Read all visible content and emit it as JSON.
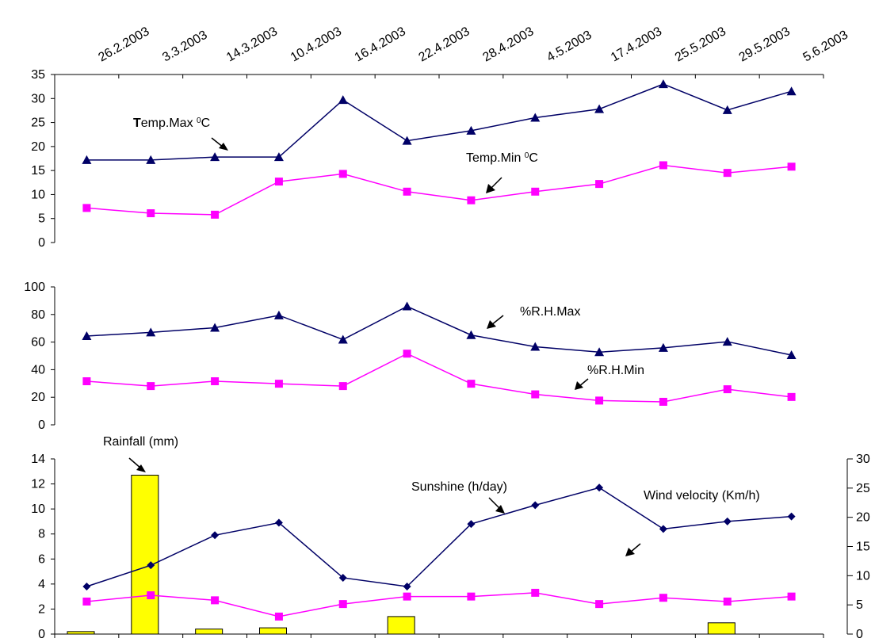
{
  "colors": {
    "navy": "#000066",
    "magenta": "#ff00ff",
    "rain_fill": "#ffff00",
    "rain_stroke": "#000000",
    "axis": "#000000"
  },
  "chart_data": [
    {
      "type": "line",
      "categories": [
        "26.2.2003",
        "3.3.2003",
        "14.3.2003",
        "10.4.2003",
        "16.4.2003",
        "22.4.2003",
        "28.4.2003",
        "4.5.2003",
        "17.4.2003",
        "25.5.2003",
        "29.5.2003",
        "5.6.2003"
      ],
      "ylim": [
        0,
        35
      ],
      "yticks": [
        "0",
        "5",
        "10",
        "15",
        "20",
        "25",
        "30",
        "35"
      ],
      "series": [
        {
          "name": "Temp.Max ⁰C",
          "marker": "triangle",
          "color": "#000066",
          "values": [
            17.2,
            17.2,
            17.8,
            17.8,
            29.7,
            21.2,
            23.3,
            26.0,
            27.8,
            33.0,
            27.6,
            31.5
          ]
        },
        {
          "name": "Temp.Min ⁰C",
          "marker": "square",
          "color": "#ff00ff",
          "values": [
            7.2,
            6.1,
            5.8,
            12.7,
            14.3,
            10.6,
            8.8,
            10.6,
            12.2,
            16.1,
            14.5,
            15.8
          ]
        }
      ],
      "annotations": {
        "max_bold": "T",
        "max_rest": "emp.Max ",
        "max_sup": "0",
        "max_unit": "C",
        "min_main": "Temp.Min ",
        "min_sup": "0",
        "min_unit": "C"
      }
    },
    {
      "type": "line",
      "categories": [
        "26.2.2003",
        "3.3.2003",
        "14.3.2003",
        "10.4.2003",
        "16.4.2003",
        "22.4.2003",
        "28.4.2003",
        "4.5.2003",
        "17.4.2003",
        "25.5.2003",
        "29.5.2003",
        "5.6.2003"
      ],
      "ylim": [
        0,
        100
      ],
      "yticks": [
        "0",
        "20",
        "40",
        "60",
        "80",
        "100"
      ],
      "series": [
        {
          "name": "%R.H.Max",
          "marker": "triangle",
          "color": "#000066",
          "values": [
            64.4,
            67.0,
            70.4,
            79.4,
            61.8,
            85.9,
            65.1,
            56.6,
            52.7,
            55.8,
            60.3,
            50.6
          ]
        },
        {
          "name": "%R.H.Min",
          "marker": "square",
          "color": "#ff00ff",
          "values": [
            31.6,
            28.1,
            31.6,
            29.8,
            28.1,
            51.6,
            29.8,
            22.1,
            17.6,
            16.7,
            25.8,
            20.2
          ]
        }
      ]
    },
    {
      "type": "bar+line",
      "categories": [
        "26.2.2003",
        "3.3.2003",
        "14.3.2003",
        "10.4.2003",
        "16.4.2003",
        "22.4.2003",
        "28.4.2003",
        "4.5.2003",
        "17.4.2003",
        "25.5.2003",
        "29.5.2003",
        "5.6.2003"
      ],
      "ylim_left": [
        0,
        14
      ],
      "yticks_left": [
        "0",
        "2",
        "4",
        "6",
        "8",
        "10",
        "12",
        "14"
      ],
      "ylim_right": [
        0,
        30
      ],
      "yticks_right": [
        "0",
        "5",
        "10",
        "15",
        "20",
        "25",
        "30"
      ],
      "rainfall": {
        "name": "Rainfall (mm)",
        "values": [
          0.2,
          12.7,
          0.4,
          0.5,
          0,
          1.4,
          0,
          0,
          0,
          0,
          0.9,
          0
        ]
      },
      "series": [
        {
          "name": "Sunshine (h/day)",
          "marker": "diamond",
          "color": "#000066",
          "axis": "left",
          "values": [
            3.8,
            5.5,
            7.9,
            8.9,
            4.5,
            3.8,
            8.8,
            10.3,
            11.7,
            8.4,
            9.0,
            9.4
          ]
        },
        {
          "name": "Wind velocity (Km/h)",
          "marker": "square",
          "color": "#ff00ff",
          "axis": "left",
          "values": [
            2.6,
            3.1,
            2.7,
            1.4,
            2.4,
            3.0,
            3.0,
            3.3,
            2.4,
            2.9,
            2.6,
            3.0
          ]
        }
      ]
    }
  ]
}
